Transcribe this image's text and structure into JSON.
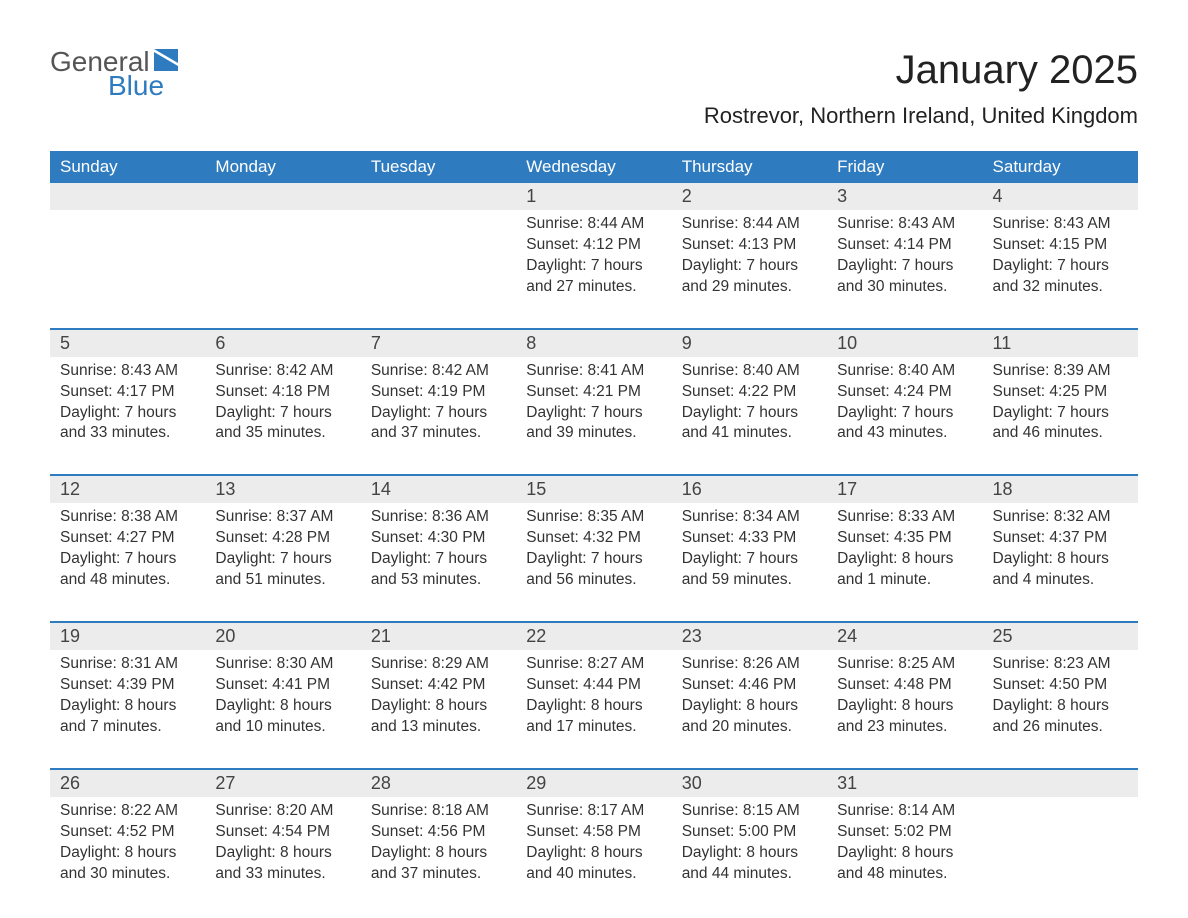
{
  "logo": {
    "general": "General",
    "blue": "Blue",
    "icon_color": "#2f7bbf"
  },
  "title": "January 2025",
  "location": "Rostrevor, Northern Ireland, United Kingdom",
  "colors": {
    "header_bg": "#2f7bbf",
    "header_text": "#ffffff",
    "daynum_bg": "#ececec",
    "row_border": "#2f7bbf",
    "text": "#333333",
    "background": "#ffffff"
  },
  "weekdays": [
    "Sunday",
    "Monday",
    "Tuesday",
    "Wednesday",
    "Thursday",
    "Friday",
    "Saturday"
  ],
  "weeks": [
    [
      null,
      null,
      null,
      {
        "n": "1",
        "sunrise": "8:44 AM",
        "sunset": "4:12 PM",
        "daylight": "7 hours and 27 minutes."
      },
      {
        "n": "2",
        "sunrise": "8:44 AM",
        "sunset": "4:13 PM",
        "daylight": "7 hours and 29 minutes."
      },
      {
        "n": "3",
        "sunrise": "8:43 AM",
        "sunset": "4:14 PM",
        "daylight": "7 hours and 30 minutes."
      },
      {
        "n": "4",
        "sunrise": "8:43 AM",
        "sunset": "4:15 PM",
        "daylight": "7 hours and 32 minutes."
      }
    ],
    [
      {
        "n": "5",
        "sunrise": "8:43 AM",
        "sunset": "4:17 PM",
        "daylight": "7 hours and 33 minutes."
      },
      {
        "n": "6",
        "sunrise": "8:42 AM",
        "sunset": "4:18 PM",
        "daylight": "7 hours and 35 minutes."
      },
      {
        "n": "7",
        "sunrise": "8:42 AM",
        "sunset": "4:19 PM",
        "daylight": "7 hours and 37 minutes."
      },
      {
        "n": "8",
        "sunrise": "8:41 AM",
        "sunset": "4:21 PM",
        "daylight": "7 hours and 39 minutes."
      },
      {
        "n": "9",
        "sunrise": "8:40 AM",
        "sunset": "4:22 PM",
        "daylight": "7 hours and 41 minutes."
      },
      {
        "n": "10",
        "sunrise": "8:40 AM",
        "sunset": "4:24 PM",
        "daylight": "7 hours and 43 minutes."
      },
      {
        "n": "11",
        "sunrise": "8:39 AM",
        "sunset": "4:25 PM",
        "daylight": "7 hours and 46 minutes."
      }
    ],
    [
      {
        "n": "12",
        "sunrise": "8:38 AM",
        "sunset": "4:27 PM",
        "daylight": "7 hours and 48 minutes."
      },
      {
        "n": "13",
        "sunrise": "8:37 AM",
        "sunset": "4:28 PM",
        "daylight": "7 hours and 51 minutes."
      },
      {
        "n": "14",
        "sunrise": "8:36 AM",
        "sunset": "4:30 PM",
        "daylight": "7 hours and 53 minutes."
      },
      {
        "n": "15",
        "sunrise": "8:35 AM",
        "sunset": "4:32 PM",
        "daylight": "7 hours and 56 minutes."
      },
      {
        "n": "16",
        "sunrise": "8:34 AM",
        "sunset": "4:33 PM",
        "daylight": "7 hours and 59 minutes."
      },
      {
        "n": "17",
        "sunrise": "8:33 AM",
        "sunset": "4:35 PM",
        "daylight": "8 hours and 1 minute."
      },
      {
        "n": "18",
        "sunrise": "8:32 AM",
        "sunset": "4:37 PM",
        "daylight": "8 hours and 4 minutes."
      }
    ],
    [
      {
        "n": "19",
        "sunrise": "8:31 AM",
        "sunset": "4:39 PM",
        "daylight": "8 hours and 7 minutes."
      },
      {
        "n": "20",
        "sunrise": "8:30 AM",
        "sunset": "4:41 PM",
        "daylight": "8 hours and 10 minutes."
      },
      {
        "n": "21",
        "sunrise": "8:29 AM",
        "sunset": "4:42 PM",
        "daylight": "8 hours and 13 minutes."
      },
      {
        "n": "22",
        "sunrise": "8:27 AM",
        "sunset": "4:44 PM",
        "daylight": "8 hours and 17 minutes."
      },
      {
        "n": "23",
        "sunrise": "8:26 AM",
        "sunset": "4:46 PM",
        "daylight": "8 hours and 20 minutes."
      },
      {
        "n": "24",
        "sunrise": "8:25 AM",
        "sunset": "4:48 PM",
        "daylight": "8 hours and 23 minutes."
      },
      {
        "n": "25",
        "sunrise": "8:23 AM",
        "sunset": "4:50 PM",
        "daylight": "8 hours and 26 minutes."
      }
    ],
    [
      {
        "n": "26",
        "sunrise": "8:22 AM",
        "sunset": "4:52 PM",
        "daylight": "8 hours and 30 minutes."
      },
      {
        "n": "27",
        "sunrise": "8:20 AM",
        "sunset": "4:54 PM",
        "daylight": "8 hours and 33 minutes."
      },
      {
        "n": "28",
        "sunrise": "8:18 AM",
        "sunset": "4:56 PM",
        "daylight": "8 hours and 37 minutes."
      },
      {
        "n": "29",
        "sunrise": "8:17 AM",
        "sunset": "4:58 PM",
        "daylight": "8 hours and 40 minutes."
      },
      {
        "n": "30",
        "sunrise": "8:15 AM",
        "sunset": "5:00 PM",
        "daylight": "8 hours and 44 minutes."
      },
      {
        "n": "31",
        "sunrise": "8:14 AM",
        "sunset": "5:02 PM",
        "daylight": "8 hours and 48 minutes."
      },
      null
    ]
  ],
  "labels": {
    "sunrise": "Sunrise: ",
    "sunset": "Sunset: ",
    "daylight": "Daylight: "
  }
}
